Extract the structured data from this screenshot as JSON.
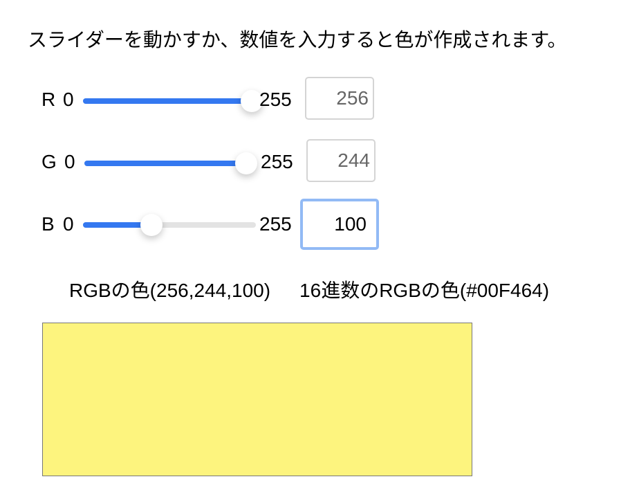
{
  "instruction": "スライダーを動かすか、数値を入力すると色が作成されます。",
  "sliders": [
    {
      "label": "R",
      "min_label": "0",
      "max_label": "255",
      "value": 255,
      "max": 255,
      "input_value": "256"
    },
    {
      "label": "G",
      "min_label": "0",
      "max_label": "255",
      "value": 244,
      "max": 255,
      "input_value": "244"
    },
    {
      "label": "B",
      "min_label": "0",
      "max_label": "255",
      "value": 100,
      "max": 255,
      "input_value": "100"
    }
  ],
  "rgb_text": "RGBの色(256,244,100)",
  "hex_text": "16進数のRGBの色(#00F464)",
  "colors": {
    "swatch": "#fdf47e",
    "accent": "#3478f0",
    "focus_ring": "#92baf5"
  }
}
